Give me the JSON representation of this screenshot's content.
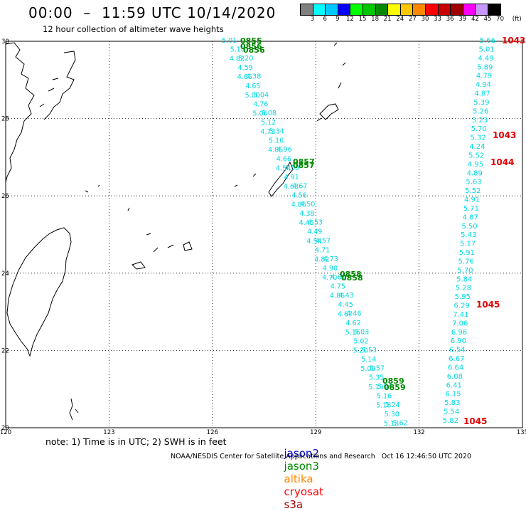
{
  "header": {
    "title": "00:00  –  11:59 UTC 10/14/2020",
    "subtitle": "12 hour collection of altimeter wave heights"
  },
  "legend": {
    "colors": [
      "#808080",
      "#00ffff",
      "#00c8ff",
      "#0000ff",
      "#00ff00",
      "#00c800",
      "#008800",
      "#ffff00",
      "#ffc800",
      "#ff8800",
      "#ff0000",
      "#c80000",
      "#a00000",
      "#ff00ff",
      "#c896ff",
      "#000000"
    ],
    "labels": [
      "3",
      "6",
      "9",
      "12",
      "15",
      "18",
      "21",
      "24",
      "27",
      "30",
      "33",
      "36",
      "39",
      "42",
      "45",
      "70",
      "(ft)"
    ]
  },
  "axes": {
    "lat_labels": [
      "30",
      "28",
      "26",
      "24",
      "22",
      "20"
    ],
    "lon_labels": [
      "120",
      "123",
      "126",
      "129",
      "132",
      "135"
    ]
  },
  "satellites": {
    "colors": {
      "jason2": "#0000cc",
      "jason3": "#008800",
      "altika": "#ff8800",
      "cryosat": "#ff0000",
      "s3a": "#aa0000"
    }
  },
  "track_times": [
    {
      "text": "0855",
      "color": "#008800"
    },
    {
      "text": "0856",
      "color": "#008800"
    },
    {
      "text": "0856",
      "color": "#008800"
    },
    {
      "text": "0857",
      "color": "#008800"
    },
    {
      "text": "0857",
      "color": "#008800"
    },
    {
      "text": "0858",
      "color": "#008800"
    },
    {
      "text": "0858",
      "color": "#008800"
    },
    {
      "text": "0859",
      "color": "#008800"
    },
    {
      "text": "0859",
      "color": "#008800"
    }
  ],
  "diagonal_values": [
    "5.01",
    "5.18",
    "5.20",
    "4.82",
    "4.59",
    "4.38",
    "4.66",
    "4.65",
    "5.04",
    "5.00",
    "4.76",
    "5.08",
    "5.06",
    "5.12",
    "5.34",
    "4.73",
    "5.16",
    "4.96",
    "4.85",
    "4.66",
    "4.59",
    "4.54",
    "4.91",
    "4.67",
    "4.63",
    "4.56",
    "4.50",
    "4.86",
    "4.38",
    "4.53",
    "4.45",
    "4.49",
    "4.57",
    "4.54",
    "4.71",
    "4.73",
    "4.82",
    "4.90",
    "4.61",
    "4.70",
    "4.75",
    "4.43",
    "4.86",
    "4.45",
    "4.46",
    "4.67",
    "4.62",
    "5.03",
    "5.16",
    "5.02",
    "5.53",
    "5.20",
    "5.14",
    "5.57",
    "5.09",
    "5.35",
    "5.04",
    "5.19",
    "5.16",
    "5.24",
    "5.18",
    "5.30",
    "5.62",
    "5.13"
  ],
  "right_column": [
    "5.66",
    "5.01",
    "4.49",
    "5.89",
    "4.79",
    "4.94",
    "4.87",
    "5.39",
    "5.26",
    "5.23",
    "5.70",
    "5.32",
    "4.24",
    "5.52",
    "4.95",
    "4.89",
    "5.63",
    "5.52",
    "4.91",
    "5.71",
    "4.87",
    "5.50",
    "5.43",
    "5.17",
    "5.91",
    "5.76",
    "5.70",
    "5.84",
    "5.28",
    "5.95",
    "6.29",
    "7.41",
    "7.06",
    "6.96",
    "6.90",
    "6.54",
    "6.67",
    "6.64",
    "6.08",
    "6.41",
    "6.15",
    "5.83",
    "5.54",
    "5.82"
  ],
  "pressure_labels": [
    "1043",
    "1043",
    "1044",
    "1045",
    "1045"
  ],
  "footer": {
    "note": "note: 1) Time is in UTC; 2) SWH is in feet",
    "sat_jason2": "jason2",
    "sat_jason3": "jason3",
    "sat_altika": "altika",
    "sat_cryosat": "cryosat",
    "sat_s3a": "s3a",
    "credit": "NOAA/NESDIS Center for Satellite Applications and Research   Oct 16 12:46:50 UTC 2020"
  }
}
